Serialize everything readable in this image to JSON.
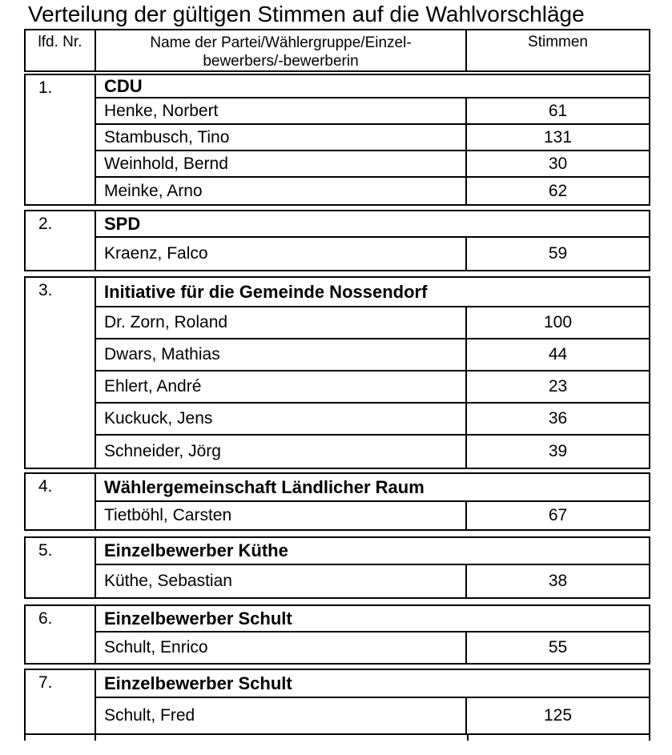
{
  "page": {
    "background_color": "#ffffff",
    "text_color": "#000000",
    "border_color": "#000000"
  },
  "title": "Verteilung der gültigen Stimmen auf die Wahlvorschläge",
  "table": {
    "header": {
      "col1": "lfd. Nr.",
      "col2_line1": "Name der Partei/Wählergruppe/Einzel-",
      "col2_line2": "bewerbers/-bewerberin",
      "col3": "Stimmen"
    },
    "sections": [
      {
        "number": "1.",
        "party": "CDU",
        "candidates": [
          {
            "name": "Henke, Norbert",
            "votes": "61"
          },
          {
            "name": "Stambusch, Tino",
            "votes": "131"
          },
          {
            "name": "Weinhold, Bernd",
            "votes": "30"
          },
          {
            "name": "Meinke, Arno",
            "votes": "62"
          }
        ]
      },
      {
        "number": "2.",
        "party": "SPD",
        "candidates": [
          {
            "name": "Kraenz, Falco",
            "votes": "59"
          }
        ]
      },
      {
        "number": "3.",
        "party": "Initiative für die Gemeinde Nossendorf",
        "candidates": [
          {
            "name": "Dr. Zorn, Roland",
            "votes": "100"
          },
          {
            "name": "Dwars, Mathias",
            "votes": "44"
          },
          {
            "name": "Ehlert, André",
            "votes": "23"
          },
          {
            "name": "Kuckuck, Jens",
            "votes": "36"
          },
          {
            "name": "Schneider, Jörg",
            "votes": "39"
          }
        ]
      },
      {
        "number": "4.",
        "party": "Wählergemeinschaft Ländlicher Raum",
        "candidates": [
          {
            "name": "Tietböhl, Carsten",
            "votes": "67"
          }
        ]
      },
      {
        "number": "5.",
        "party": "Einzelbewerber Küthe",
        "candidates": [
          {
            "name": "Küthe, Sebastian",
            "votes": "38"
          }
        ]
      },
      {
        "number": "6.",
        "party": "Einzelbewerber Schult",
        "candidates": [
          {
            "name": "Schult, Enrico",
            "votes": "55"
          }
        ]
      },
      {
        "number": "7.",
        "party": "Einzelbewerber Schult",
        "candidates": [
          {
            "name": "Schult, Fred",
            "votes": "125"
          }
        ]
      }
    ]
  }
}
